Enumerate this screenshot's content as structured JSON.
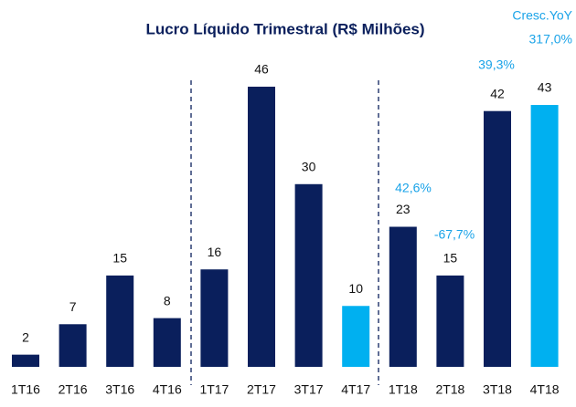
{
  "chart_data": {
    "type": "bar",
    "title": "Lucro Líquido Trimestral (R$ Milhões)",
    "categories": [
      "1T16",
      "2T16",
      "3T16",
      "4T16",
      "1T17",
      "2T17",
      "3T17",
      "4T17",
      "1T18",
      "2T18",
      "3T18",
      "4T18"
    ],
    "values": [
      2,
      7,
      15,
      8,
      16,
      46,
      30,
      10,
      23,
      15,
      42,
      43
    ],
    "colors": [
      "#0a1f5c",
      "#0a1f5c",
      "#0a1f5c",
      "#0a1f5c",
      "#0a1f5c",
      "#0a1f5c",
      "#0a1f5c",
      "#00b0f0",
      "#0a1f5c",
      "#0a1f5c",
      "#0a1f5c",
      "#00b0f0"
    ],
    "annotations": [
      "Cresc.YoY",
      "317,0%",
      "42,6%",
      "-67,7%",
      "39,3%"
    ]
  }
}
